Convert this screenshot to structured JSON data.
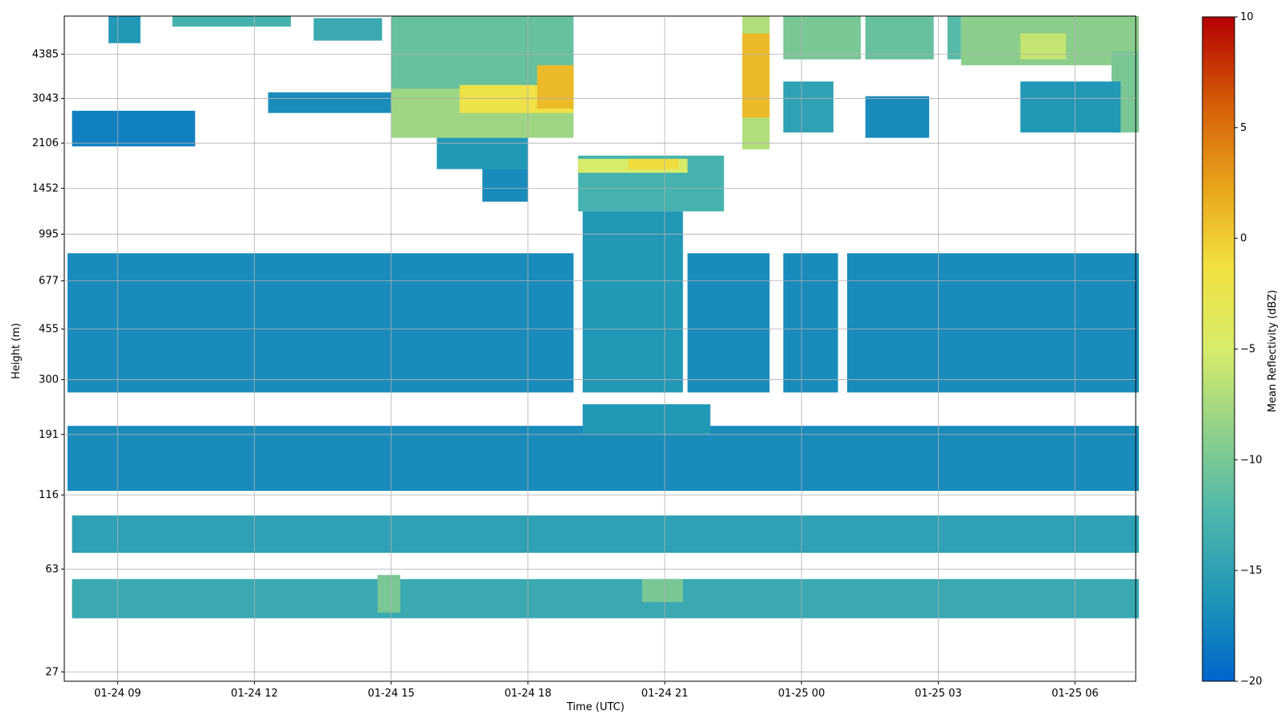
{
  "chart_data": {
    "type": "heatmap",
    "title": "",
    "xlabel": "Time (UTC)",
    "ylabel": "Height (m)",
    "x_ticks": [
      "01-24 09",
      "01-24 12",
      "01-24 15",
      "01-24 18",
      "01-24 21",
      "01-25 00",
      "01-25 03",
      "01-25 06"
    ],
    "x_range": [
      "01-24 07:50",
      "01-25 07:20"
    ],
    "y_ticks": [
      "27",
      "63",
      "116",
      "191",
      "300",
      "455",
      "677",
      "995",
      "1452",
      "2106",
      "3043",
      "4385"
    ],
    "y_scale": "log",
    "colorbar": {
      "label": "Mean Reflectivity (dBZ)",
      "range": [
        -20,
        10
      ],
      "ticks": [
        "10",
        "5",
        "0",
        "−5",
        "−10",
        "−15",
        "−20"
      ],
      "colormap": [
        "#0066cc",
        "#1f96b8",
        "#4cb6ac",
        "#8fd08a",
        "#d8ec6a",
        "#f2e040",
        "#e8a11a",
        "#d45a08",
        "#b30000"
      ]
    },
    "grid": true,
    "regions": [
      {
        "t0": 8.0,
        "t1": 10.7,
        "h0": 2050,
        "h1": 2750,
        "dbz": -18
      },
      {
        "t0": 8.8,
        "t1": 9.5,
        "h0": 4800,
        "h1": 6000,
        "dbz": -16
      },
      {
        "t0": 10.2,
        "t1": 12.8,
        "h0": 5500,
        "h1": 6000,
        "dbz": -13
      },
      {
        "t0": 12.3,
        "t1": 16.0,
        "h0": 2700,
        "h1": 3200,
        "dbz": -17
      },
      {
        "t0": 13.3,
        "t1": 14.8,
        "h0": 4900,
        "h1": 5900,
        "dbz": -14
      },
      {
        "t0": 15.0,
        "t1": 19.0,
        "h0": 3200,
        "h1": 6000,
        "dbz": -11
      },
      {
        "t0": 15.0,
        "t1": 19.0,
        "h0": 2200,
        "h1": 3300,
        "dbz": -8
      },
      {
        "t0": 16.5,
        "t1": 19.0,
        "h0": 2700,
        "h1": 3400,
        "dbz": -2
      },
      {
        "t0": 18.2,
        "t1": 19.0,
        "h0": 2800,
        "h1": 4000,
        "dbz": 1
      },
      {
        "t0": 16.0,
        "t1": 18.0,
        "h0": 1700,
        "h1": 2200,
        "dbz": -16
      },
      {
        "t0": 17.0,
        "t1": 18.0,
        "h0": 1300,
        "h1": 1700,
        "dbz": -17
      },
      {
        "t0": 19.1,
        "t1": 22.3,
        "h0": 1200,
        "h1": 1900,
        "dbz": -13
      },
      {
        "t0": 19.1,
        "t1": 21.5,
        "h0": 1650,
        "h1": 1850,
        "dbz": -5
      },
      {
        "t0": 20.2,
        "t1": 21.3,
        "h0": 1700,
        "h1": 1850,
        "dbz": -1
      },
      {
        "t0": 22.7,
        "t1": 23.3,
        "h0": 2000,
        "h1": 6000,
        "dbz": -7
      },
      {
        "t0": 22.7,
        "t1": 23.3,
        "h0": 2600,
        "h1": 5200,
        "dbz": 1
      },
      {
        "t0": 23.6,
        "t1": 24.7,
        "h0": 2300,
        "h1": 3500,
        "dbz": -15
      },
      {
        "t0": 23.6,
        "t1": 25.3,
        "h0": 4200,
        "h1": 6000,
        "dbz": -10
      },
      {
        "t0": 25.4,
        "t1": 26.9,
        "h0": 4200,
        "h1": 6000,
        "dbz": -11
      },
      {
        "t0": 25.4,
        "t1": 26.8,
        "h0": 2200,
        "h1": 3100,
        "dbz": -17
      },
      {
        "t0": 27.2,
        "t1": 27.5,
        "h0": 4200,
        "h1": 6000,
        "dbz": -12
      },
      {
        "t0": 27.5,
        "t1": 31.4,
        "h0": 4000,
        "h1": 6000,
        "dbz": -9
      },
      {
        "t0": 28.8,
        "t1": 29.8,
        "h0": 4200,
        "h1": 5200,
        "dbz": -6
      },
      {
        "t0": 30.8,
        "t1": 31.4,
        "h0": 2300,
        "h1": 4500,
        "dbz": -10
      },
      {
        "t0": 28.8,
        "t1": 31.0,
        "h0": 2300,
        "h1": 3500,
        "dbz": -16
      },
      {
        "t0": 7.9,
        "t1": 19.0,
        "h0": 270,
        "h1": 850,
        "dbz": -17
      },
      {
        "t0": 19.2,
        "t1": 21.4,
        "h0": 270,
        "h1": 1200,
        "dbz": -16
      },
      {
        "t0": 21.5,
        "t1": 23.3,
        "h0": 270,
        "h1": 850,
        "dbz": -17
      },
      {
        "t0": 23.6,
        "t1": 24.8,
        "h0": 270,
        "h1": 850,
        "dbz": -17
      },
      {
        "t0": 25.0,
        "t1": 31.4,
        "h0": 270,
        "h1": 850,
        "dbz": -17
      },
      {
        "t0": 7.9,
        "t1": 31.4,
        "h0": 120,
        "h1": 205,
        "dbz": -17
      },
      {
        "t0": 19.2,
        "t1": 22.0,
        "h0": 190,
        "h1": 245,
        "dbz": -16
      },
      {
        "t0": 8.0,
        "t1": 31.4,
        "h0": 72,
        "h1": 98,
        "dbz": -15
      },
      {
        "t0": 8.0,
        "t1": 31.4,
        "h0": 42,
        "h1": 58,
        "dbz": -14
      },
      {
        "t0": 14.7,
        "t1": 15.2,
        "h0": 44,
        "h1": 60,
        "dbz": -10
      },
      {
        "t0": 20.5,
        "t1": 21.4,
        "h0": 48,
        "h1": 58,
        "dbz": -10
      }
    ]
  }
}
